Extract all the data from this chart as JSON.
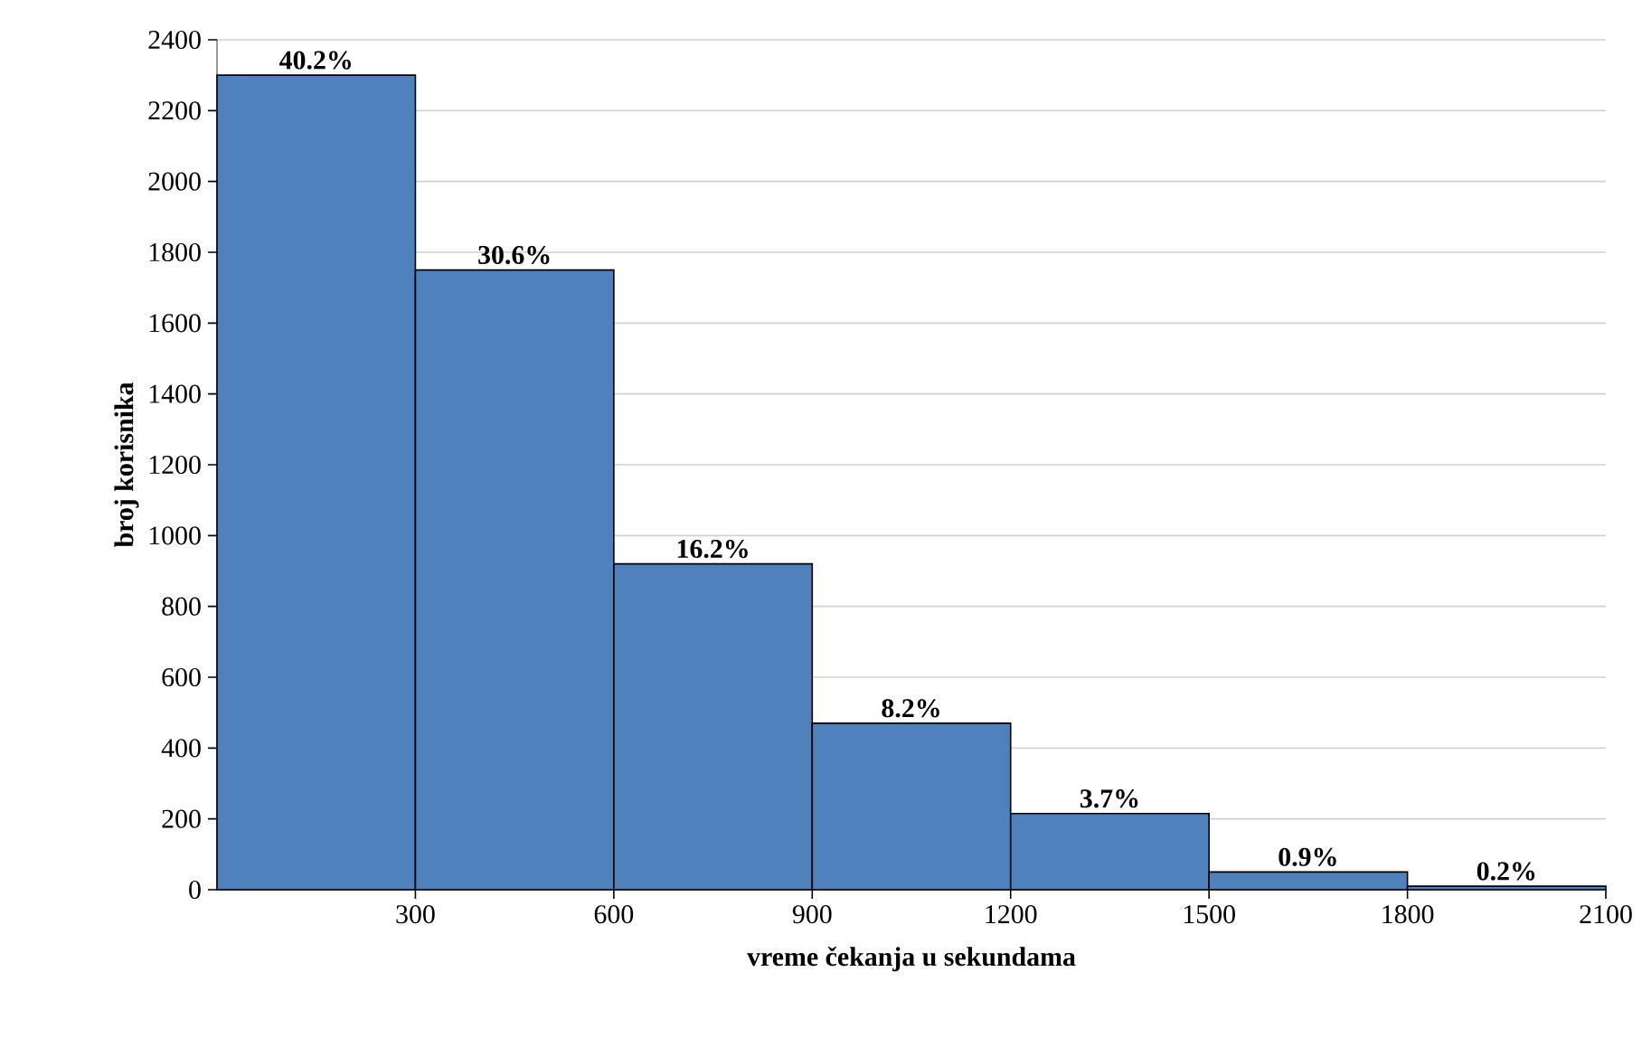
{
  "chart_data": {
    "type": "histogram",
    "xlabel": "vreme čekanja u sekundama",
    "ylabel": "broj korisnika",
    "bins": [
      0,
      300,
      600,
      900,
      1200,
      1500,
      1800,
      2100
    ],
    "values": [
      2300,
      1750,
      920,
      470,
      215,
      50,
      10
    ],
    "annotations": [
      {
        "text": "40.2%",
        "x": 150,
        "y": 2300
      },
      {
        "text": "30.6%",
        "x": 450,
        "y": 1750
      },
      {
        "text": "16.2%",
        "x": 750,
        "y": 920
      },
      {
        "text": "8.2%",
        "x": 1050,
        "y": 470
      },
      {
        "text": "3.7%",
        "x": 1350,
        "y": 215
      },
      {
        "text": "0.9%",
        "x": 1650,
        "y": 50
      },
      {
        "text": "0.2%",
        "x": 1950,
        "y": 10
      }
    ],
    "color": "#4f81bd",
    "xlim": [
      0,
      2100
    ],
    "xticks": [
      300,
      600,
      900,
      1200,
      1500,
      1800,
      2100
    ],
    "ylim": [
      0,
      2400
    ],
    "yticks": [
      0,
      200,
      400,
      600,
      800,
      1000,
      1200,
      1400,
      1600,
      1800,
      2000,
      2200,
      2400
    ],
    "grid": "y"
  }
}
